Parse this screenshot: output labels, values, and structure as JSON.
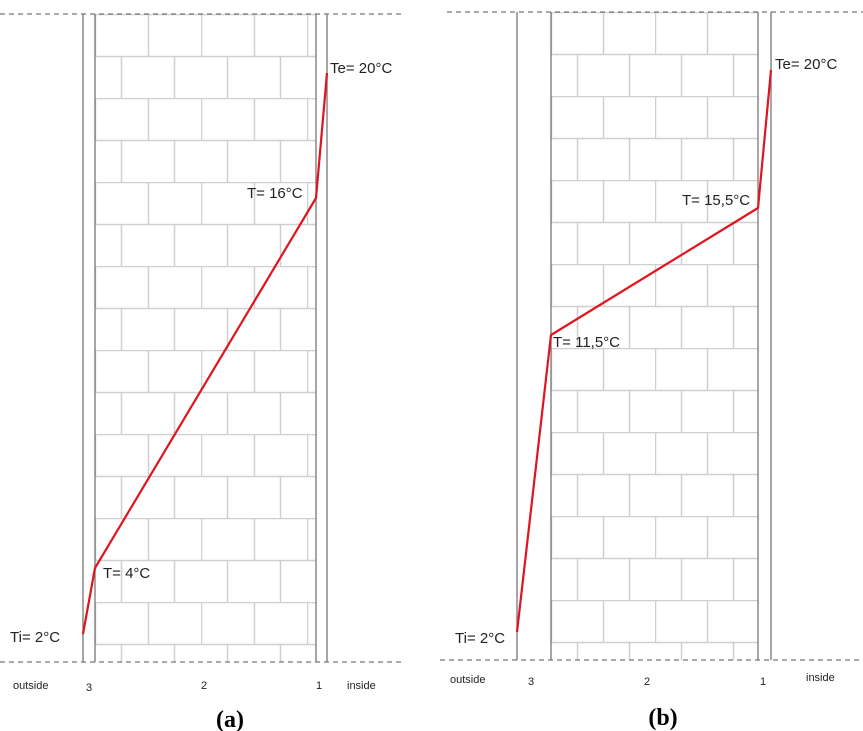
{
  "panels": [
    {
      "caption": "(a)",
      "temperature_labels": [
        "Te= 20°C",
        "T= 16°C",
        "T= 4°C",
        "Ti= 2°C"
      ],
      "layer_labels": [
        "3",
        "2",
        "1"
      ],
      "side_labels": [
        "outside",
        "inside"
      ]
    },
    {
      "caption": "(b)",
      "temperature_labels": [
        "Te= 20°C",
        "T= 15,5°C",
        "T= 11,5°C",
        "Ti= 2°C"
      ],
      "layer_labels": [
        "3",
        "2",
        "1"
      ],
      "side_labels": [
        "outside",
        "inside"
      ]
    }
  ]
}
